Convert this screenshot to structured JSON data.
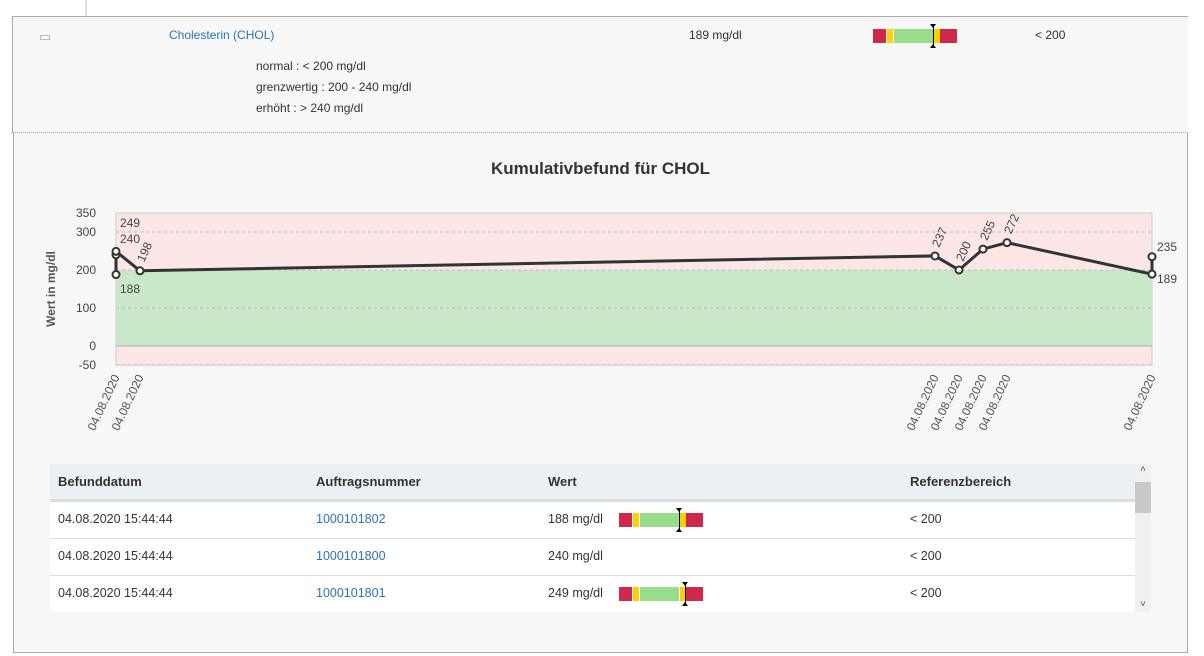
{
  "test": {
    "name": "Cholesterin (CHOL)",
    "value": "189 mg/dl",
    "reference": "< 200",
    "gauge_marker": 0.72,
    "ranges": [
      "normal : < 200 mg/dl",
      "grenzwertig : 200 - 240 mg/dl",
      "erhöht : > 240 mg/dl"
    ]
  },
  "chart_data": {
    "type": "line",
    "title": "Kumulativbefund für CHOL",
    "ylabel": "Wert in mg/dl",
    "ylim": [
      -50,
      350
    ],
    "yticks": [
      "350",
      "300",
      "200",
      "100",
      "0",
      "-50"
    ],
    "normal_band": [
      0,
      200
    ],
    "points": [
      {
        "date": "04.08.2020",
        "value": 188
      },
      {
        "date": "04.08.2020",
        "value": 240
      },
      {
        "date": "04.08.2020",
        "value": 249
      },
      {
        "date": "04.08.2020",
        "value": 198
      },
      {
        "date": "04.08.2020",
        "value": 237
      },
      {
        "date": "04.08.2020",
        "value": 200
      },
      {
        "date": "04.08.2020",
        "value": 255
      },
      {
        "date": "04.08.2020",
        "value": 272
      },
      {
        "date": "04.08.2020",
        "value": 189
      },
      {
        "date": "04.08.2020",
        "value": 235
      }
    ],
    "xticks": [
      "04.08.2020",
      "04.08.2020",
      "04.08.2020",
      "04.08.2020",
      "04.08.2020",
      "04.08.2020",
      "04.08.2020"
    ]
  },
  "table": {
    "headers": [
      "Befunddatum",
      "Auftragsnummer",
      "Wert",
      "Referenzbereich"
    ],
    "rows": [
      {
        "date": "04.08.2020 15:44:44",
        "order": "1000101802",
        "value": "188 mg/dl",
        "ref": "< 200",
        "gauge": 0.71
      },
      {
        "date": "04.08.2020 15:44:44",
        "order": "1000101800",
        "value": "240 mg/dl",
        "ref": "< 200",
        "gauge": null
      },
      {
        "date": "04.08.2020 15:44:44",
        "order": "1000101801",
        "value": "249 mg/dl",
        "ref": "< 200",
        "gauge": 0.79
      }
    ]
  },
  "scroll": {
    "up": "˄",
    "down": "˅"
  }
}
